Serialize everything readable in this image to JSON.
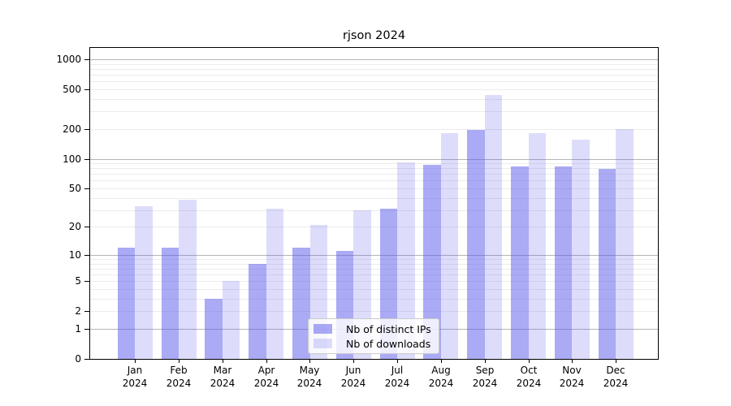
{
  "chart_data": {
    "type": "bar",
    "title": "rjson 2024",
    "categories": [
      "Jan",
      "Feb",
      "Mar",
      "Apr",
      "May",
      "Jun",
      "Jul",
      "Aug",
      "Sep",
      "Oct",
      "Nov",
      "Dec"
    ],
    "x_tick_year": "2024",
    "series": [
      {
        "name": "Nb of distinct IPs",
        "color": "rgba(85,85,235,0.50)",
        "values": [
          12,
          12,
          3,
          8,
          12,
          11,
          31,
          87,
          195,
          84,
          84,
          79
        ]
      },
      {
        "name": "Nb of downloads",
        "color": "rgba(85,85,235,0.20)",
        "values": [
          33,
          38,
          5,
          31,
          21,
          30,
          92,
          180,
          435,
          182,
          157,
          201
        ]
      }
    ],
    "y_axis": {
      "ticks": [
        0,
        1,
        2,
        5,
        10,
        20,
        50,
        100,
        200,
        500,
        1000
      ],
      "scale": "log1p",
      "ylim": [
        0,
        1350
      ]
    },
    "grid": {
      "major_at": [
        1,
        10,
        100,
        1000
      ],
      "major_color": "#b5b5b5",
      "minor_color": "#ececec"
    },
    "legend": {
      "position": "lower-center-inside"
    }
  }
}
